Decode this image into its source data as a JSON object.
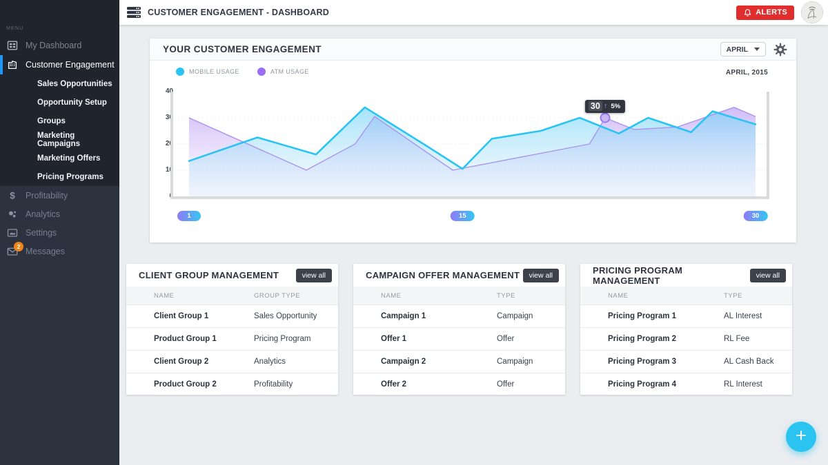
{
  "header": {
    "title": "CUSTOMER ENGAGEMENT - DASHBOARD",
    "alerts_label": "ALERTS"
  },
  "sidebar": {
    "menu_label": "MENU",
    "primary": [
      {
        "label": "My Dashboard",
        "icon": "dashboard-grid-icon",
        "active": false
      },
      {
        "label": "Customer Engagement",
        "icon": "building-icon",
        "active": true
      }
    ],
    "sub_items": [
      "Sales Opportunities",
      "Opportunity Setup",
      "Groups",
      "Marketing Campaigns",
      "Marketing Offers",
      "Pricing Programs"
    ],
    "secondary": [
      {
        "label": "Profitability",
        "icon": "dollar-icon"
      },
      {
        "label": "Analytics",
        "icon": "bubbles-icon"
      },
      {
        "label": "Settings",
        "icon": "image-icon"
      },
      {
        "label": "Messages",
        "icon": "envelope-icon",
        "badge": "2"
      }
    ]
  },
  "chart_card": {
    "title": "YOUR CUSTOMER ENGAGEMENT",
    "month_select": "APRIL",
    "period_label": "APRIL, 2015"
  },
  "chart_data": {
    "type": "area",
    "title": "YOUR CUSTOMER ENGAGEMENT",
    "x_axis": {
      "min": 1,
      "max": 30,
      "pill_labels": [
        "1",
        "15",
        "30"
      ],
      "pill_days": [
        1,
        15,
        30
      ]
    },
    "y_axis": {
      "min": 0,
      "max": 40,
      "ticks": [
        40,
        30,
        20,
        10,
        0
      ]
    },
    "legend_position": "top-left",
    "grid": "faint-dashed",
    "series": [
      {
        "name": "MOBILE USAGE",
        "color": "#29c4f2",
        "points": [
          [
            1,
            13.5
          ],
          [
            4.5,
            22.5
          ],
          [
            7.5,
            16
          ],
          [
            10,
            34
          ],
          [
            13,
            20
          ],
          [
            15,
            10.5
          ],
          [
            16.5,
            22
          ],
          [
            19,
            25
          ],
          [
            21,
            30
          ],
          [
            23,
            24
          ],
          [
            24.5,
            30
          ],
          [
            26.7,
            24.5
          ],
          [
            27.8,
            32.5
          ],
          [
            30,
            27.5
          ]
        ]
      },
      {
        "name": "ATM USAGE",
        "color": "#9b6df3",
        "points": [
          [
            1,
            30
          ],
          [
            7,
            10
          ],
          [
            9.5,
            20
          ],
          [
            10.5,
            30.5
          ],
          [
            14.5,
            10
          ],
          [
            21.5,
            20
          ],
          [
            22.3,
            30
          ],
          [
            23.8,
            25.5
          ],
          [
            26,
            26.5
          ],
          [
            28.9,
            34
          ],
          [
            30,
            30.5
          ]
        ]
      }
    ],
    "tooltip": {
      "value": "30",
      "direction": "up",
      "change": "5%",
      "day": 22.3,
      "series": "ATM USAGE"
    }
  },
  "cards": [
    {
      "title": "CLIENT GROUP MANAGEMENT",
      "action": "view all",
      "columns": [
        "NAME",
        "GROUP TYPE"
      ],
      "rows": [
        {
          "name": "Client Group 1",
          "type": "Sales Opportunity"
        },
        {
          "name": "Product Group 1",
          "type": "Pricing Program"
        },
        {
          "name": "Client Group 2",
          "type": "Analytics"
        },
        {
          "name": "Product Group 2",
          "type": "Profitability"
        }
      ]
    },
    {
      "title": "CAMPAIGN OFFER MANAGEMENT",
      "action": "view all",
      "columns": [
        "NAME",
        "TYPE"
      ],
      "rows": [
        {
          "name": "Campaign 1",
          "type": "Campaign"
        },
        {
          "name": "Offer 1",
          "type": "Offer"
        },
        {
          "name": "Campaign 2",
          "type": "Campaign"
        },
        {
          "name": "Offer 2",
          "type": "Offer"
        }
      ]
    },
    {
      "title": "PRICING PROGRAM MANAGEMENT",
      "action": "view all",
      "columns": [
        "NAME",
        "TYPE"
      ],
      "rows": [
        {
          "name": "Pricing Program 1",
          "type": "AL Interest"
        },
        {
          "name": "Pricing Program 2",
          "type": "RL Fee"
        },
        {
          "name": "Pricing Program 3",
          "type": "AL Cash Back"
        },
        {
          "name": "Pricing Program 4",
          "type": "RL Interest"
        }
      ]
    }
  ],
  "fab": {
    "label": "+"
  },
  "colors": {
    "mobile_cyan": "#29c4f2",
    "atm_purple": "#9b6df3",
    "active_blue": "#2196f3",
    "alert_red": "#e02e2e",
    "badge_orange": "#f08418"
  }
}
